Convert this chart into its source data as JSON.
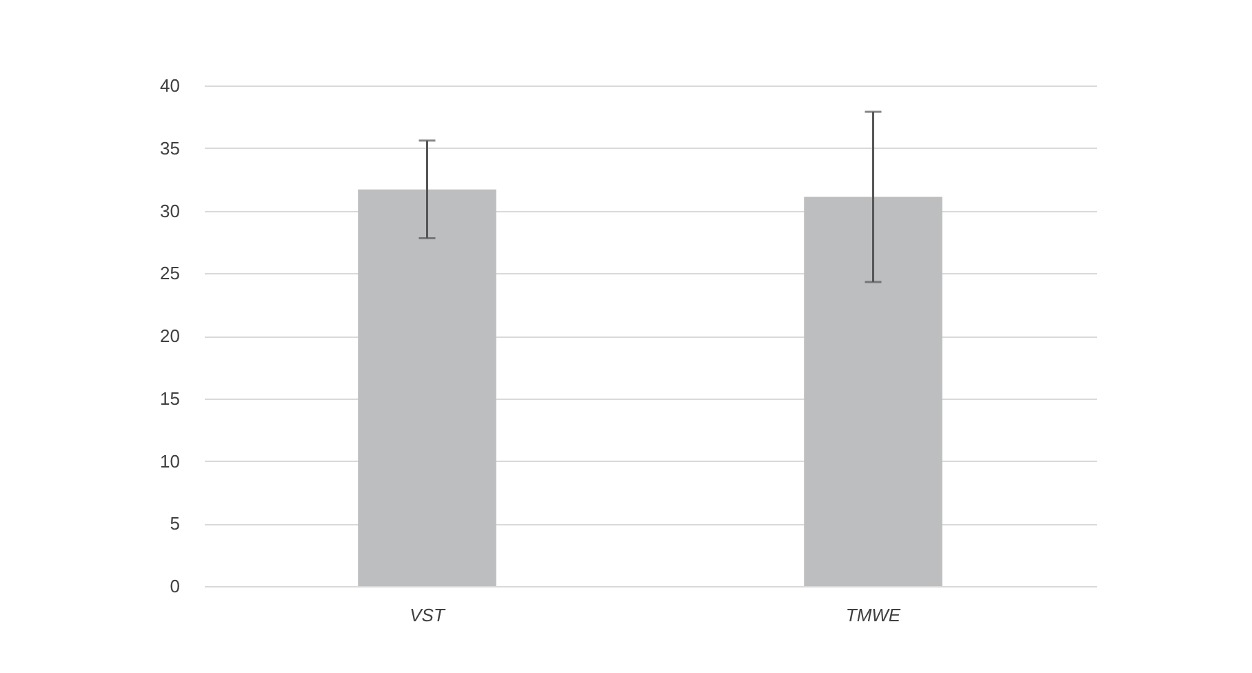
{
  "chart_data": {
    "type": "bar",
    "categories": [
      "VST",
      "TMWE"
    ],
    "values": [
      31.7,
      31.1
    ],
    "color": "#bdbec0",
    "errors": [
      3.9,
      6.8
    ],
    "ylim": [
      0,
      40
    ],
    "yticks": [
      0,
      5,
      10,
      15,
      20,
      25,
      30,
      35,
      40
    ],
    "grid": "y"
  }
}
